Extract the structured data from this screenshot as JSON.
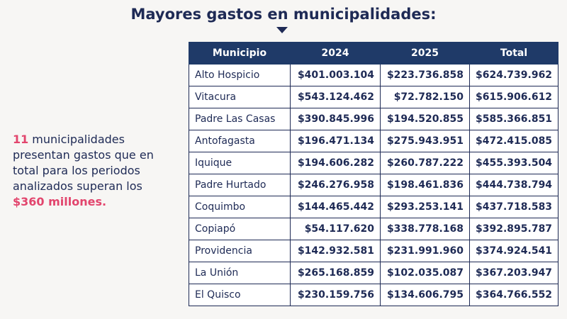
{
  "title": "Mayores gastos en municipalidades:",
  "summary": {
    "highlight_count": "11",
    "lines": [
      "municipalidades",
      "presentan gastos que en",
      "total para los periodos",
      "analizados superan los"
    ],
    "highlight_amount": "$360 millones."
  },
  "table": {
    "columns": [
      "Municipio",
      "2024",
      "2025",
      "Total"
    ],
    "rows": [
      [
        "Alto Hospicio",
        "$401.003.104",
        "$223.736.858",
        "$624.739.962"
      ],
      [
        "Vitacura",
        "$543.124.462",
        "$72.782.150",
        "$615.906.612"
      ],
      [
        "Padre Las Casas",
        "$390.845.996",
        "$194.520.855",
        "$585.366.851"
      ],
      [
        "Antofagasta",
        "$196.471.134",
        "$275.943.951",
        "$472.415.085"
      ],
      [
        "Iquique",
        "$194.606.282",
        "$260.787.222",
        "$455.393.504"
      ],
      [
        "Padre Hurtado",
        "$246.276.958",
        "$198.461.836",
        "$444.738.794"
      ],
      [
        "Coquimbo",
        "$144.465.442",
        "$293.253.141",
        "$437.718.583"
      ],
      [
        "Copiapó",
        "$54.117.620",
        "$338.778.168",
        "$392.895.787"
      ],
      [
        "Providencia",
        "$142.932.581",
        "$231.991.960",
        "$374.924.541"
      ],
      [
        "La Unión",
        "$265.168.859",
        "$102.035.087",
        "$367.203.947"
      ],
      [
        "El Quisco",
        "$230.159.756",
        "$134.606.795",
        "$364.766.552"
      ]
    ]
  }
}
